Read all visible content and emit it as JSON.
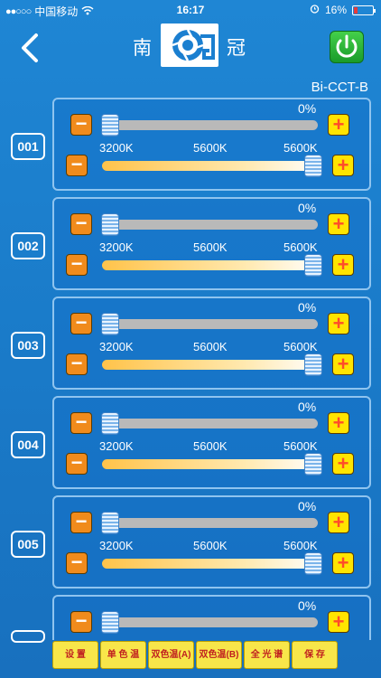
{
  "status": {
    "carrier": "中国移动",
    "time": "16:17",
    "battery": "16%"
  },
  "header": {
    "brand_left": "南",
    "brand_right": "冠",
    "model": "Bi-CCT-B"
  },
  "channels": [
    {
      "id": "001",
      "intensity": "0%",
      "cct_min": "3200K",
      "cct_mid": "5600K",
      "cct_val": "5600K"
    },
    {
      "id": "002",
      "intensity": "0%",
      "cct_min": "3200K",
      "cct_mid": "5600K",
      "cct_val": "5600K"
    },
    {
      "id": "003",
      "intensity": "0%",
      "cct_min": "3200K",
      "cct_mid": "5600K",
      "cct_val": "5600K"
    },
    {
      "id": "004",
      "intensity": "0%",
      "cct_min": "3200K",
      "cct_mid": "5600K",
      "cct_val": "5600K"
    },
    {
      "id": "005",
      "intensity": "0%",
      "cct_min": "3200K",
      "cct_mid": "5600K",
      "cct_val": "5600K"
    },
    {
      "id": "",
      "intensity": "0%"
    }
  ],
  "tabs": [
    "设 置",
    "单 色 温",
    "双色温(A)",
    "双色温(B)",
    "全 光 谱",
    "保 存"
  ],
  "colors": {
    "background": "#1a7bc9",
    "minus_button": "#f08b1c",
    "plus_button": "#ffe400",
    "power": "#1a9b2a",
    "tab": "#f8e64a"
  }
}
